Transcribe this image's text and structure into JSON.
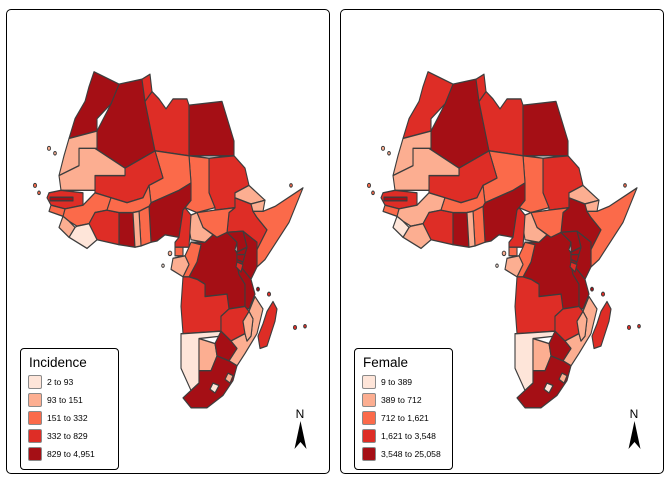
{
  "figure_type": "choropleth_maps_africa",
  "palette": {
    "classes": [
      "#FEE5D9",
      "#FCAE91",
      "#FB6A4A",
      "#DE2D26",
      "#A50F15"
    ],
    "border": "#3d3d3d",
    "panel_border": "#000000",
    "background": "#ffffff"
  },
  "panels": [
    {
      "id": "incidence",
      "legend_title": "Incidence",
      "north_label": "N",
      "legend_items": [
        {
          "label": "2 to 93",
          "class": 1
        },
        {
          "label": "93 to 151",
          "class": 2
        },
        {
          "label": "151 to 332",
          "class": 3
        },
        {
          "label": "332 to 829",
          "class": 4
        },
        {
          "label": "829 to 4,951",
          "class": 5
        }
      ]
    },
    {
      "id": "female",
      "legend_title": "Female",
      "north_label": "N",
      "legend_items": [
        {
          "label": "9 to 389",
          "class": 1
        },
        {
          "label": "389 to 712",
          "class": 2
        },
        {
          "label": "712 to 1,621",
          "class": 3
        },
        {
          "label": "1,621 to 3,548",
          "class": 4
        },
        {
          "label": "3,548 to 25,058",
          "class": 5
        }
      ]
    }
  ],
  "countries": [
    {
      "name": "algeria",
      "incidence_class": 5,
      "female_class": 5
    },
    {
      "name": "libya",
      "incidence_class": 4,
      "female_class": 4
    },
    {
      "name": "egypt",
      "incidence_class": 5,
      "female_class": 5
    },
    {
      "name": "sudan",
      "incidence_class": 4,
      "female_class": 4
    },
    {
      "name": "chad",
      "incidence_class": 3,
      "female_class": 3
    },
    {
      "name": "niger",
      "incidence_class": 3,
      "female_class": 3
    },
    {
      "name": "mali",
      "incidence_class": 4,
      "female_class": 4
    },
    {
      "name": "mauritania",
      "incidence_class": 2,
      "female_class": 2
    },
    {
      "name": "morocco",
      "incidence_class": 5,
      "female_class": 4
    },
    {
      "name": "western-sahara",
      "incidence_class": 2,
      "female_class": 2
    },
    {
      "name": "tunisia",
      "incidence_class": 4,
      "female_class": 4
    },
    {
      "name": "drc",
      "incidence_class": 5,
      "female_class": 5
    },
    {
      "name": "ethiopia",
      "incidence_class": 4,
      "female_class": 5
    },
    {
      "name": "somalia",
      "incidence_class": 3,
      "female_class": 3
    },
    {
      "name": "south-sudan",
      "incidence_class": 3,
      "female_class": 3
    },
    {
      "name": "central-african-republic",
      "incidence_class": 2,
      "female_class": 2
    },
    {
      "name": "nigeria",
      "incidence_class": 5,
      "female_class": 5
    },
    {
      "name": "cameroon",
      "incidence_class": 4,
      "female_class": 4
    },
    {
      "name": "kenya",
      "incidence_class": 5,
      "female_class": 5
    },
    {
      "name": "tanzania",
      "incidence_class": 5,
      "female_class": 5
    },
    {
      "name": "angola",
      "incidence_class": 4,
      "female_class": 4
    },
    {
      "name": "zambia",
      "incidence_class": 4,
      "female_class": 4
    },
    {
      "name": "mozambique",
      "incidence_class": 2,
      "female_class": 2
    },
    {
      "name": "namibia",
      "incidence_class": 1,
      "female_class": 1
    },
    {
      "name": "botswana",
      "incidence_class": 2,
      "female_class": 2
    },
    {
      "name": "south-africa",
      "incidence_class": 5,
      "female_class": 5
    },
    {
      "name": "zimbabwe",
      "incidence_class": 5,
      "female_class": 5
    },
    {
      "name": "uganda",
      "incidence_class": 5,
      "female_class": 5
    },
    {
      "name": "eritrea",
      "incidence_class": 2,
      "female_class": 2
    },
    {
      "name": "djibouti",
      "incidence_class": 2,
      "female_class": 2
    },
    {
      "name": "senegal",
      "incidence_class": 4,
      "female_class": 4
    },
    {
      "name": "guinea",
      "incidence_class": 3,
      "female_class": 2
    },
    {
      "name": "ivory-coast",
      "incidence_class": 4,
      "female_class": 4
    },
    {
      "name": "ghana",
      "incidence_class": 5,
      "female_class": 5
    },
    {
      "name": "burkina-faso",
      "incidence_class": 3,
      "female_class": 3
    },
    {
      "name": "benin",
      "incidence_class": 3,
      "female_class": 3
    },
    {
      "name": "togo",
      "incidence_class": 2,
      "female_class": 2
    },
    {
      "name": "liberia",
      "incidence_class": 1,
      "female_class": 2
    },
    {
      "name": "sierra-leone",
      "incidence_class": 2,
      "female_class": 1
    },
    {
      "name": "guinea-bissau",
      "incidence_class": 3,
      "female_class": 3
    },
    {
      "name": "gambia",
      "incidence_class": 5,
      "female_class": 5
    },
    {
      "name": "congo",
      "incidence_class": 3,
      "female_class": 3
    },
    {
      "name": "gabon",
      "incidence_class": 2,
      "female_class": 2
    },
    {
      "name": "equatorial-guinea",
      "incidence_class": 3,
      "female_class": 3
    },
    {
      "name": "rwanda",
      "incidence_class": 5,
      "female_class": 5
    },
    {
      "name": "burundi",
      "incidence_class": 4,
      "female_class": 4
    },
    {
      "name": "malawi",
      "incidence_class": 2,
      "female_class": 2
    },
    {
      "name": "madagascar",
      "incidence_class": 4,
      "female_class": 4
    },
    {
      "name": "lesotho",
      "incidence_class": 1,
      "female_class": 1
    },
    {
      "name": "eswatini",
      "incidence_class": 2,
      "female_class": 2
    }
  ],
  "islands": [
    {
      "name": "canary-1",
      "incidence_class": 2,
      "female_class": 2
    },
    {
      "name": "canary-2",
      "incidence_class": 2,
      "female_class": 2
    },
    {
      "name": "cape-verde-1",
      "incidence_class": 3,
      "female_class": 3
    },
    {
      "name": "cape-verde-2",
      "incidence_class": 3,
      "female_class": 3
    },
    {
      "name": "bioko",
      "incidence_class": 2,
      "female_class": 2
    },
    {
      "name": "sao-tome",
      "incidence_class": 1,
      "female_class": 1
    },
    {
      "name": "socotra",
      "incidence_class": 3,
      "female_class": 3
    },
    {
      "name": "zanzibar",
      "incidence_class": 5,
      "female_class": 5
    },
    {
      "name": "comoros",
      "incidence_class": 4,
      "female_class": 4
    },
    {
      "name": "mauritius",
      "incidence_class": 4,
      "female_class": 4
    },
    {
      "name": "reunion",
      "incidence_class": 4,
      "female_class": 4
    }
  ]
}
